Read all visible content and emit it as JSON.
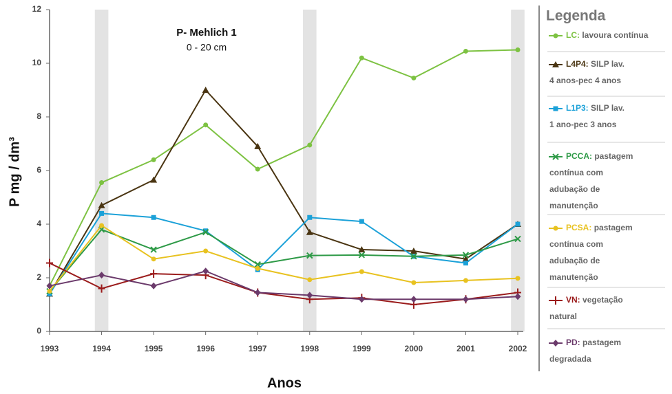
{
  "chart_data": {
    "type": "line",
    "annotation": [
      "P- Mehlich 1",
      "0 - 20 cm"
    ],
    "x_label": "Anos",
    "y_label": "P mg / dm³",
    "legend_title": "Legenda",
    "legend_position": "right",
    "x": [
      1993,
      1994,
      1995,
      1996,
      1997,
      1998,
      1999,
      2000,
      2001,
      2002
    ],
    "xlim": [
      1993,
      2002
    ],
    "xticks": [
      1993,
      1994,
      1995,
      1996,
      1997,
      1998,
      1999,
      2000,
      2001,
      2002
    ],
    "ylim": [
      0,
      12
    ],
    "yticks": [
      0,
      2,
      4,
      6,
      8,
      10,
      12
    ],
    "highlight_x": [
      1994,
      1998,
      2002
    ],
    "series": [
      {
        "name": "LC:",
        "description": [
          "lavoura contínua"
        ],
        "color": "#7dc242",
        "marker": "circle",
        "values": [
          1.7,
          5.55,
          6.4,
          7.7,
          6.05,
          6.95,
          10.2,
          9.45,
          10.45,
          10.5
        ]
      },
      {
        "name": "L4P4:",
        "description": [
          "SILP lav.",
          "4 anos-pec 4 anos"
        ],
        "color": "#4a3512",
        "marker": "triangle",
        "values": [
          1.4,
          4.7,
          5.65,
          9.0,
          6.9,
          3.7,
          3.05,
          3.0,
          2.7,
          4.0
        ]
      },
      {
        "name": "L1P3:",
        "description": [
          "SILP lav.",
          "1 ano-pec 3 anos"
        ],
        "color": "#1ba1d8",
        "marker": "square",
        "values": [
          1.4,
          4.4,
          4.25,
          3.75,
          2.3,
          4.25,
          4.1,
          2.8,
          2.55,
          4.0
        ]
      },
      {
        "name": "PCCA:",
        "description": [
          "pastagem",
          "contínua com",
          "adubação de",
          "manutenção"
        ],
        "color": "#2e9a47",
        "marker": "x",
        "values": [
          1.5,
          3.8,
          3.05,
          3.7,
          2.5,
          2.83,
          2.85,
          2.8,
          2.85,
          3.45
        ]
      },
      {
        "name": "PCSA:",
        "description": [
          "pastagem",
          "contínua com",
          "adubação de",
          "manutenção"
        ],
        "color": "#e8c220",
        "marker": "circle",
        "values": [
          1.5,
          3.95,
          2.7,
          3.0,
          2.35,
          1.93,
          2.23,
          1.82,
          1.9,
          1.98
        ]
      },
      {
        "name": "VN:",
        "description": [
          "vegetação",
          "natural"
        ],
        "color": "#9b1c1c",
        "marker": "plus",
        "values": [
          2.55,
          1.6,
          2.15,
          2.1,
          1.45,
          1.2,
          1.25,
          1.0,
          1.2,
          1.45
        ]
      },
      {
        "name": "PD:",
        "description": [
          "pastagem",
          "degradada"
        ],
        "color": "#6b3a6b",
        "marker": "diamond",
        "values": [
          1.7,
          2.1,
          1.7,
          2.25,
          1.45,
          1.35,
          1.2,
          1.2,
          1.2,
          1.3
        ]
      }
    ]
  }
}
